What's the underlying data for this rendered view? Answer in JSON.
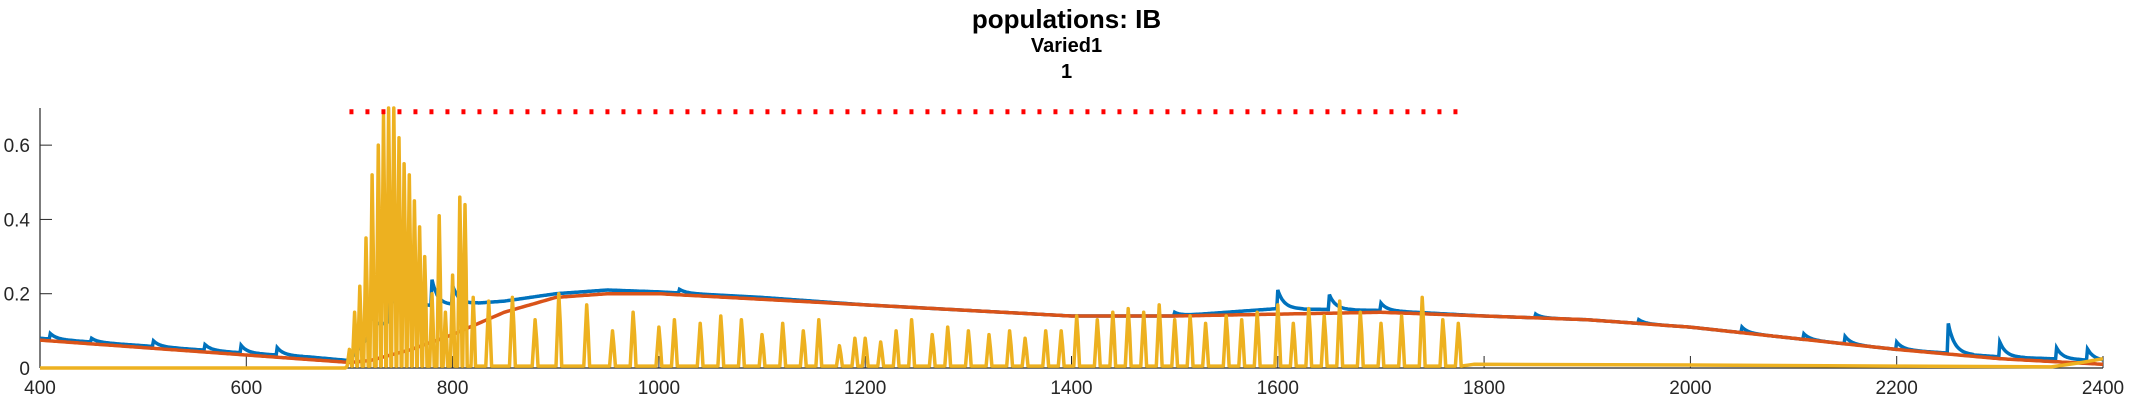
{
  "chart_data": {
    "type": "line",
    "title": "populations: IB",
    "subtitle_lines": [
      "Varied1",
      "1"
    ],
    "xlabel": "",
    "ylabel": "",
    "xlim": [
      400,
      2400
    ],
    "ylim": [
      0,
      0.7
    ],
    "x_ticks": [
      400,
      600,
      800,
      1000,
      1200,
      1400,
      1600,
      1800,
      2000,
      2200,
      2400
    ],
    "x_tick_labels": [
      "400",
      "600",
      "800",
      "1000",
      "1200",
      "1400",
      "1600",
      "1800",
      "2000",
      "2200",
      "2400"
    ],
    "y_ticks": [
      0,
      0.2,
      0.4,
      0.6
    ],
    "y_tick_labels": [
      "0",
      "0.2",
      "0.4",
      "0.6"
    ],
    "grid": false,
    "legend": "none",
    "colors": {
      "series_blue": "#0072BD",
      "series_orange": "#D95319",
      "series_yellow": "#EDB120",
      "stimulus_marker": "#FF0000",
      "axis": "#262626"
    },
    "stimulus_marker": {
      "x_start": 700,
      "x_end": 1780,
      "y": 0.69,
      "style": "dotted"
    },
    "series": [
      {
        "color": "#0072BD",
        "style": "spiky",
        "x": [
          400,
          500,
          600,
          660,
          700,
          720,
          760,
          800,
          850,
          900,
          950,
          1000,
          1100,
          1200,
          1300,
          1400,
          1500,
          1600,
          1700,
          1800,
          1900,
          2000,
          2100,
          2200,
          2300,
          2400
        ],
        "y": [
          0.08,
          0.06,
          0.04,
          0.03,
          0.02,
          0.09,
          0.16,
          0.17,
          0.18,
          0.2,
          0.21,
          0.205,
          0.19,
          0.17,
          0.155,
          0.14,
          0.14,
          0.16,
          0.155,
          0.14,
          0.13,
          0.11,
          0.08,
          0.05,
          0.03,
          0.02
        ],
        "spikes": [
          {
            "x": 410,
            "h": 0.015
          },
          {
            "x": 450,
            "h": 0.01
          },
          {
            "x": 510,
            "h": 0.015
          },
          {
            "x": 560,
            "h": 0.015
          },
          {
            "x": 595,
            "h": 0.02
          },
          {
            "x": 630,
            "h": 0.02
          },
          {
            "x": 720,
            "h": 0.06
          },
          {
            "x": 740,
            "h": 0.09
          },
          {
            "x": 760,
            "h": 0.08
          },
          {
            "x": 780,
            "h": 0.07
          },
          {
            "x": 800,
            "h": 0.05
          },
          {
            "x": 1020,
            "h": 0.01
          },
          {
            "x": 1500,
            "h": 0.01
          },
          {
            "x": 1600,
            "h": 0.05
          },
          {
            "x": 1650,
            "h": 0.04
          },
          {
            "x": 1700,
            "h": 0.02
          },
          {
            "x": 1850,
            "h": 0.01
          },
          {
            "x": 1950,
            "h": 0.01
          },
          {
            "x": 2050,
            "h": 0.015
          },
          {
            "x": 2110,
            "h": 0.015
          },
          {
            "x": 2150,
            "h": 0.02
          },
          {
            "x": 2200,
            "h": 0.02
          },
          {
            "x": 2250,
            "h": 0.08
          },
          {
            "x": 2300,
            "h": 0.04
          },
          {
            "x": 2355,
            "h": 0.03
          },
          {
            "x": 2385,
            "h": 0.03
          }
        ]
      },
      {
        "color": "#D95319",
        "style": "smooth",
        "x": [
          400,
          500,
          600,
          650,
          700,
          720,
          760,
          800,
          850,
          900,
          950,
          1000,
          1100,
          1200,
          1300,
          1400,
          1500,
          1600,
          1700,
          1800,
          1900,
          2000,
          2100,
          2200,
          2300,
          2400
        ],
        "y": [
          0.075,
          0.055,
          0.035,
          0.025,
          0.015,
          0.02,
          0.05,
          0.09,
          0.15,
          0.19,
          0.2,
          0.2,
          0.185,
          0.17,
          0.155,
          0.14,
          0.14,
          0.145,
          0.15,
          0.14,
          0.13,
          0.11,
          0.08,
          0.05,
          0.025,
          0.01
        ]
      },
      {
        "color": "#EDB120",
        "style": "bursts",
        "baseline": 0.0,
        "bursts": [
          {
            "x": 700,
            "peak": 0.05
          },
          {
            "x": 705,
            "peak": 0.15
          },
          {
            "x": 710,
            "peak": 0.22
          },
          {
            "x": 716,
            "peak": 0.35
          },
          {
            "x": 722,
            "peak": 0.52
          },
          {
            "x": 728,
            "peak": 0.6
          },
          {
            "x": 733,
            "peak": 0.68
          },
          {
            "x": 738,
            "peak": 0.7
          },
          {
            "x": 743,
            "peak": 0.7
          },
          {
            "x": 748,
            "peak": 0.62
          },
          {
            "x": 753,
            "peak": 0.55
          },
          {
            "x": 758,
            "peak": 0.52
          },
          {
            "x": 763,
            "peak": 0.45
          },
          {
            "x": 768,
            "peak": 0.38
          },
          {
            "x": 773,
            "peak": 0.3
          },
          {
            "x": 780,
            "peak": 0.2
          },
          {
            "x": 787,
            "peak": 0.41
          },
          {
            "x": 793,
            "peak": 0.15
          },
          {
            "x": 800,
            "peak": 0.25
          },
          {
            "x": 807,
            "peak": 0.46
          },
          {
            "x": 812,
            "peak": 0.44
          },
          {
            "x": 820,
            "peak": 0.19
          },
          {
            "x": 835,
            "peak": 0.18
          },
          {
            "x": 858,
            "peak": 0.19
          },
          {
            "x": 880,
            "peak": 0.13
          },
          {
            "x": 903,
            "peak": 0.2
          },
          {
            "x": 930,
            "peak": 0.17
          },
          {
            "x": 955,
            "peak": 0.1
          },
          {
            "x": 975,
            "peak": 0.15
          },
          {
            "x": 1000,
            "peak": 0.11
          },
          {
            "x": 1015,
            "peak": 0.13
          },
          {
            "x": 1040,
            "peak": 0.12
          },
          {
            "x": 1060,
            "peak": 0.14
          },
          {
            "x": 1080,
            "peak": 0.13
          },
          {
            "x": 1100,
            "peak": 0.09
          },
          {
            "x": 1120,
            "peak": 0.12
          },
          {
            "x": 1140,
            "peak": 0.1
          },
          {
            "x": 1155,
            "peak": 0.13
          },
          {
            "x": 1175,
            "peak": 0.06
          },
          {
            "x": 1190,
            "peak": 0.08
          },
          {
            "x": 1200,
            "peak": 0.08
          },
          {
            "x": 1215,
            "peak": 0.07
          },
          {
            "x": 1230,
            "peak": 0.1
          },
          {
            "x": 1245,
            "peak": 0.13
          },
          {
            "x": 1265,
            "peak": 0.09
          },
          {
            "x": 1280,
            "peak": 0.11
          },
          {
            "x": 1300,
            "peak": 0.1
          },
          {
            "x": 1320,
            "peak": 0.09
          },
          {
            "x": 1340,
            "peak": 0.1
          },
          {
            "x": 1355,
            "peak": 0.08
          },
          {
            "x": 1375,
            "peak": 0.1
          },
          {
            "x": 1390,
            "peak": 0.1
          },
          {
            "x": 1405,
            "peak": 0.14
          },
          {
            "x": 1425,
            "peak": 0.13
          },
          {
            "x": 1440,
            "peak": 0.15
          },
          {
            "x": 1455,
            "peak": 0.16
          },
          {
            "x": 1470,
            "peak": 0.15
          },
          {
            "x": 1485,
            "peak": 0.17
          },
          {
            "x": 1500,
            "peak": 0.13
          },
          {
            "x": 1515,
            "peak": 0.14
          },
          {
            "x": 1530,
            "peak": 0.12
          },
          {
            "x": 1550,
            "peak": 0.14
          },
          {
            "x": 1565,
            "peak": 0.13
          },
          {
            "x": 1580,
            "peak": 0.15
          },
          {
            "x": 1600,
            "peak": 0.17
          },
          {
            "x": 1615,
            "peak": 0.12
          },
          {
            "x": 1630,
            "peak": 0.16
          },
          {
            "x": 1645,
            "peak": 0.14
          },
          {
            "x": 1660,
            "peak": 0.18
          },
          {
            "x": 1680,
            "peak": 0.15
          },
          {
            "x": 1700,
            "peak": 0.12
          },
          {
            "x": 1720,
            "peak": 0.14
          },
          {
            "x": 1740,
            "peak": 0.19
          },
          {
            "x": 1760,
            "peak": 0.13
          },
          {
            "x": 1775,
            "peak": 0.12
          }
        ],
        "tail": [
          {
            "x": 1790,
            "y": 0.01
          },
          {
            "x": 2000,
            "y": 0.008
          },
          {
            "x": 2200,
            "y": 0.005
          },
          {
            "x": 2350,
            "y": 0.003
          },
          {
            "x": 2380,
            "y": 0.015
          },
          {
            "x": 2400,
            "y": 0.025
          }
        ]
      }
    ]
  }
}
